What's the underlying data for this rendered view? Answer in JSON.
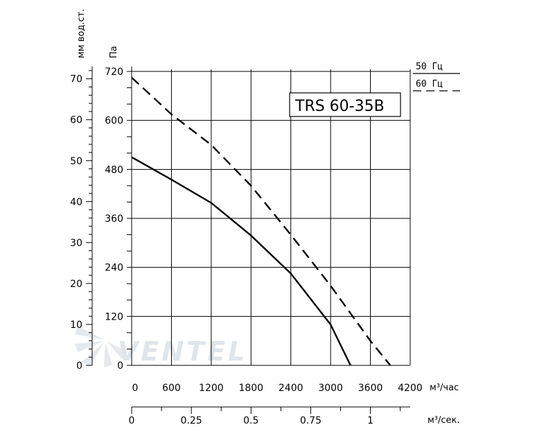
{
  "chart_data": {
    "type": "line",
    "title": "TRS 60-35B",
    "x": {
      "label": "м³/час",
      "ticks": [
        0,
        600,
        1200,
        1800,
        2400,
        3000,
        3600,
        4200
      ],
      "range": [
        0,
        4200
      ]
    },
    "x2": {
      "label": "м³/сек.",
      "ticks": [
        "0",
        "0.25",
        "0.5",
        "0.75",
        "1"
      ],
      "tick_values": [
        0,
        0.25,
        0.5,
        0.75,
        1
      ],
      "range": [
        0,
        1.1667
      ]
    },
    "y": {
      "label": "Па",
      "ticks": [
        0,
        120,
        240,
        360,
        480,
        600,
        720
      ],
      "range": [
        0,
        720
      ]
    },
    "y2": {
      "label": "мм вод.ст.",
      "ticks": [
        0,
        10,
        20,
        30,
        40,
        50,
        60,
        70
      ],
      "range": [
        0,
        73.4
      ]
    },
    "grid": true,
    "series": [
      {
        "name": "50 Гц",
        "style": "solid",
        "points": [
          [
            0,
            510
          ],
          [
            600,
            455
          ],
          [
            1200,
            398
          ],
          [
            1800,
            318
          ],
          [
            2400,
            225
          ],
          [
            3000,
            100
          ],
          [
            3300,
            0
          ]
        ]
      },
      {
        "name": "60 Гц",
        "style": "dashed",
        "points": [
          [
            0,
            705
          ],
          [
            600,
            615
          ],
          [
            1200,
            540
          ],
          [
            1800,
            440
          ],
          [
            2400,
            320
          ],
          [
            3000,
            195
          ],
          [
            3600,
            60
          ],
          [
            3900,
            0
          ]
        ]
      }
    ]
  },
  "legend": {
    "items": [
      "50 Гц",
      "60 Гц"
    ]
  },
  "watermark": "VENTEL",
  "colors": {
    "line": "#000000",
    "grid": "#000000",
    "watermark": "#dfe5ea"
  }
}
